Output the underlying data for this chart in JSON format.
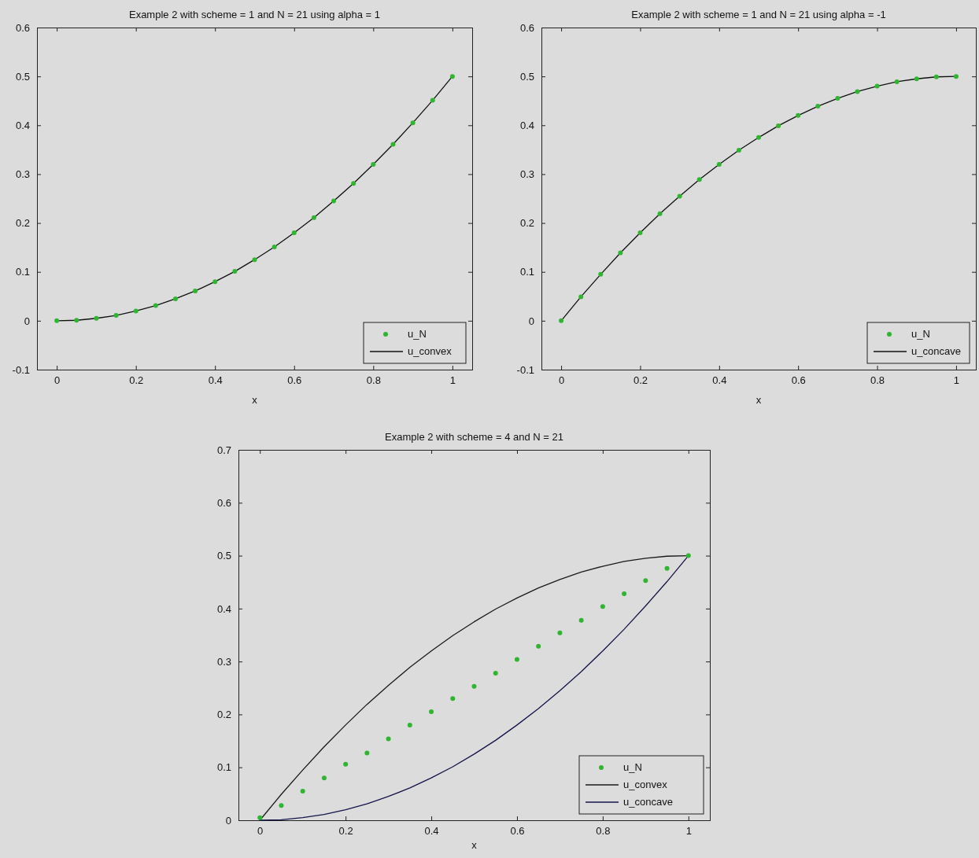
{
  "chart_data": [
    {
      "type": "line",
      "title": "Example 2 with scheme = 1 and N = 21 using alpha = 1",
      "xlabel": "x",
      "xlim": [
        -0.05,
        1.05
      ],
      "ylim": [
        -0.1,
        0.6
      ],
      "xticks": [
        0,
        0.2,
        0.4,
        0.6,
        0.8,
        1
      ],
      "yticks": [
        -0.1,
        0,
        0.1,
        0.2,
        0.3,
        0.4,
        0.5,
        0.6
      ],
      "grid": false,
      "legend": "bottom right",
      "x": [
        0,
        0.05,
        0.1,
        0.15,
        0.2,
        0.25,
        0.3,
        0.35,
        0.4,
        0.45,
        0.5,
        0.55,
        0.6,
        0.65,
        0.7,
        0.75,
        0.8,
        0.85,
        0.9,
        0.95,
        1
      ],
      "series": [
        {
          "name": "u_N",
          "type": "scatter",
          "marker": "circle",
          "color": "#2fb52f",
          "values": [
            0,
            0.001,
            0.005,
            0.011,
            0.02,
            0.031,
            0.045,
            0.061,
            0.08,
            0.101,
            0.125,
            0.151,
            0.18,
            0.211,
            0.245,
            0.281,
            0.32,
            0.361,
            0.405,
            0.451,
            0.5
          ]
        },
        {
          "name": "u_convex",
          "type": "line",
          "line_style": "solid",
          "color": "#111111",
          "values": [
            0,
            0.001,
            0.005,
            0.011,
            0.02,
            0.031,
            0.045,
            0.061,
            0.08,
            0.101,
            0.125,
            0.151,
            0.18,
            0.211,
            0.245,
            0.281,
            0.32,
            0.361,
            0.405,
            0.451,
            0.5
          ]
        }
      ]
    },
    {
      "type": "line",
      "title": "Example 2 with scheme = 1 and N = 21 using alpha = -1",
      "xlabel": "x",
      "xlim": [
        -0.05,
        1.05
      ],
      "ylim": [
        -0.1,
        0.6
      ],
      "xticks": [
        0,
        0.2,
        0.4,
        0.6,
        0.8,
        1
      ],
      "yticks": [
        -0.1,
        0,
        0.1,
        0.2,
        0.3,
        0.4,
        0.5,
        0.6
      ],
      "grid": false,
      "legend": "bottom right",
      "x": [
        0,
        0.05,
        0.1,
        0.15,
        0.2,
        0.25,
        0.3,
        0.35,
        0.4,
        0.45,
        0.5,
        0.55,
        0.6,
        0.65,
        0.7,
        0.75,
        0.8,
        0.85,
        0.9,
        0.95,
        1
      ],
      "series": [
        {
          "name": "u_N",
          "type": "scatter",
          "marker": "circle",
          "color": "#2fb52f",
          "values": [
            0,
            0.049,
            0.095,
            0.139,
            0.18,
            0.219,
            0.255,
            0.289,
            0.32,
            0.349,
            0.375,
            0.399,
            0.42,
            0.439,
            0.455,
            0.469,
            0.48,
            0.489,
            0.495,
            0.499,
            0.5
          ]
        },
        {
          "name": "u_concave",
          "type": "line",
          "line_style": "solid",
          "color": "#111111",
          "values": [
            0,
            0.049,
            0.095,
            0.139,
            0.18,
            0.219,
            0.255,
            0.289,
            0.32,
            0.349,
            0.375,
            0.399,
            0.42,
            0.439,
            0.455,
            0.469,
            0.48,
            0.489,
            0.495,
            0.499,
            0.5
          ]
        }
      ]
    },
    {
      "type": "line",
      "title": "Example 2 with scheme = 4 and N = 21",
      "xlabel": "x",
      "xlim": [
        -0.05,
        1.05
      ],
      "ylim": [
        0,
        0.7
      ],
      "xticks": [
        0,
        0.2,
        0.4,
        0.6,
        0.8,
        1
      ],
      "yticks": [
        0,
        0.1,
        0.2,
        0.3,
        0.4,
        0.5,
        0.6,
        0.7
      ],
      "grid": false,
      "legend": "bottom right",
      "x": [
        0,
        0.05,
        0.1,
        0.15,
        0.2,
        0.25,
        0.3,
        0.35,
        0.4,
        0.45,
        0.5,
        0.55,
        0.6,
        0.65,
        0.7,
        0.75,
        0.8,
        0.85,
        0.9,
        0.95,
        1
      ],
      "series": [
        {
          "name": "u_N",
          "type": "scatter",
          "marker": "circle",
          "color": "#2fb52f",
          "values": [
            0.005,
            0.028,
            0.055,
            0.08,
            0.106,
            0.127,
            0.154,
            0.18,
            0.205,
            0.23,
            0.253,
            0.278,
            0.304,
            0.329,
            0.354,
            0.378,
            0.404,
            0.428,
            0.453,
            0.476,
            0.5
          ]
        },
        {
          "name": "u_convex",
          "type": "line",
          "line_style": "solid",
          "color": "#1a1a1a",
          "values": [
            0,
            0.049,
            0.095,
            0.139,
            0.18,
            0.219,
            0.255,
            0.289,
            0.32,
            0.349,
            0.375,
            0.399,
            0.42,
            0.439,
            0.455,
            0.469,
            0.48,
            0.489,
            0.495,
            0.499,
            0.5
          ]
        },
        {
          "name": "u_concave",
          "type": "line",
          "line_style": "solid",
          "color": "#14144a",
          "values": [
            0,
            0.001,
            0.005,
            0.011,
            0.02,
            0.031,
            0.045,
            0.061,
            0.08,
            0.101,
            0.125,
            0.151,
            0.18,
            0.211,
            0.245,
            0.281,
            0.32,
            0.361,
            0.405,
            0.451,
            0.5
          ]
        }
      ]
    }
  ]
}
